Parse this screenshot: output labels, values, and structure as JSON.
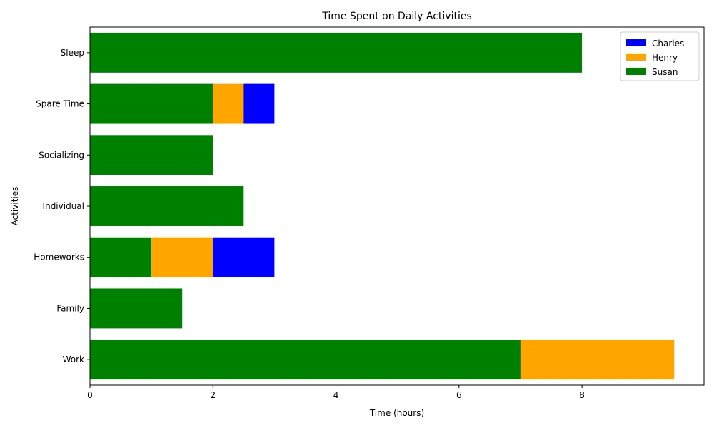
{
  "chart_data": {
    "type": "bar",
    "orientation": "horizontal",
    "stacked": true,
    "title": "Time Spent on Daily Activities",
    "xlabel": "Time (hours)",
    "ylabel": "Activities",
    "xlim": [
      0,
      10
    ],
    "xticks": [
      0,
      2,
      4,
      6,
      8
    ],
    "grid": false,
    "legend_position": "top-right",
    "categories": [
      "Work",
      "Family",
      "Homeworks",
      "Individual",
      "Socializing",
      "Spare Time",
      "Sleep"
    ],
    "series": [
      {
        "name": "Susan",
        "color": "#008000",
        "values": [
          7,
          1.5,
          1,
          2.5,
          2,
          2,
          8
        ]
      },
      {
        "name": "Henry",
        "color": "#ffa500",
        "values": [
          2.5,
          0,
          1,
          0,
          0,
          0.5,
          0
        ]
      },
      {
        "name": "Charles",
        "color": "#0000ff",
        "values": [
          0,
          0,
          1,
          0,
          0,
          0.5,
          0
        ]
      }
    ],
    "legend_order": [
      "Charles",
      "Henry",
      "Susan"
    ]
  }
}
